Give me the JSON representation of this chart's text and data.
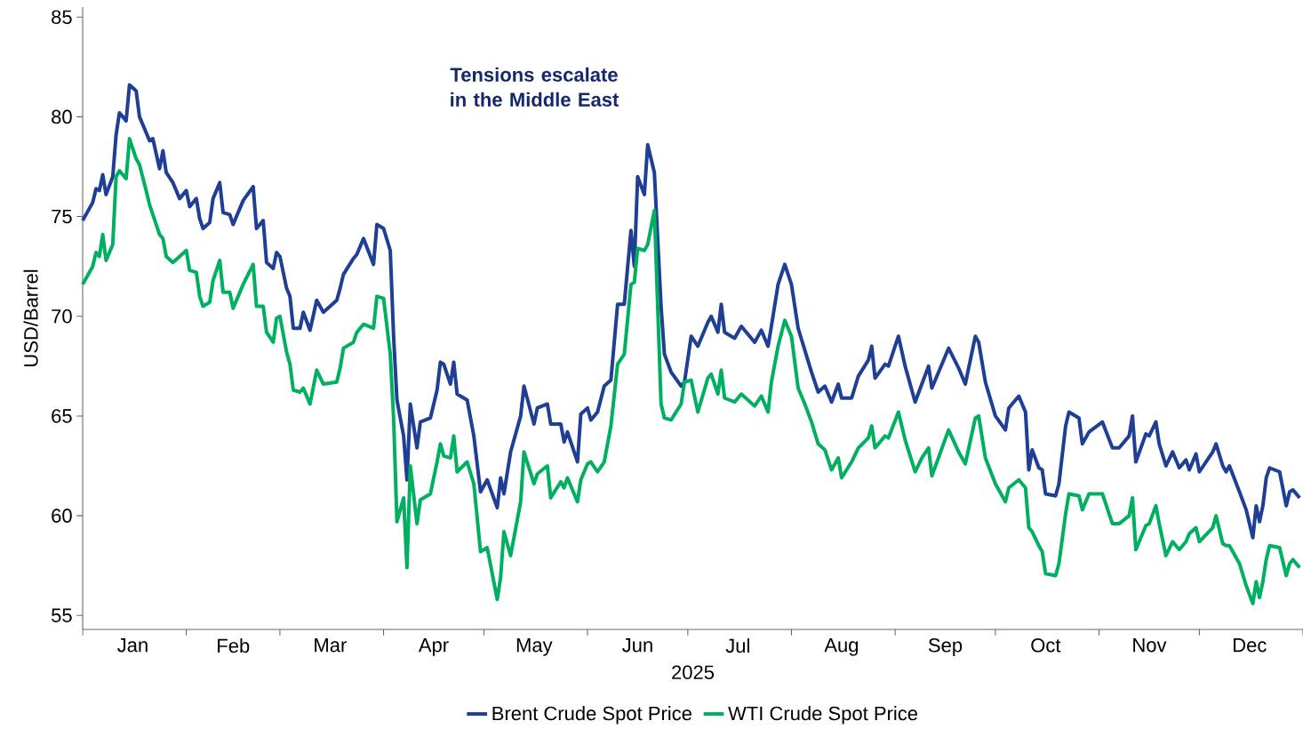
{
  "chart_data": {
    "type": "line",
    "xlabel": "2025",
    "ylabel": "USD/Barrel",
    "annotations": [
      "Tensions escalate in the Middle East"
    ],
    "x": [
      "2025-01-01",
      "2025-01-04",
      "2025-01-05",
      "2025-01-06",
      "2025-01-07",
      "2025-01-08",
      "2025-01-10",
      "2025-01-11",
      "2025-01-12",
      "2025-01-14",
      "2025-01-15",
      "2025-01-17",
      "2025-01-18",
      "2025-01-20",
      "2025-01-21",
      "2025-01-22",
      "2025-01-24",
      "2025-01-25",
      "2025-01-26",
      "2025-01-28",
      "2025-01-30",
      "2025-02-01",
      "2025-02-02",
      "2025-02-04",
      "2025-02-05",
      "2025-02-06",
      "2025-02-08",
      "2025-02-09",
      "2025-02-11",
      "2025-02-12",
      "2025-02-14",
      "2025-02-15",
      "2025-02-18",
      "2025-02-21",
      "2025-02-22",
      "2025-02-24",
      "2025-02-25",
      "2025-02-27",
      "2025-02-28",
      "2025-03-01",
      "2025-03-03",
      "2025-03-04",
      "2025-03-05",
      "2025-03-07",
      "2025-03-08",
      "2025-03-10",
      "2025-03-12",
      "2025-03-14",
      "2025-03-18",
      "2025-03-19",
      "2025-03-20",
      "2025-03-23",
      "2025-03-24",
      "2025-03-26",
      "2025-03-29",
      "2025-03-30",
      "2025-04-01",
      "2025-04-03",
      "2025-04-04",
      "2025-04-05",
      "2025-04-07",
      "2025-04-08",
      "2025-04-09",
      "2025-04-11",
      "2025-04-12",
      "2025-04-15",
      "2025-04-17",
      "2025-04-18",
      "2025-04-19",
      "2025-04-21",
      "2025-04-22",
      "2025-04-23",
      "2025-04-26",
      "2025-04-28",
      "2025-04-30",
      "2025-05-02",
      "2025-05-05",
      "2025-05-06",
      "2025-05-07",
      "2025-05-09",
      "2025-05-12",
      "2025-05-13",
      "2025-05-16",
      "2025-05-17",
      "2025-05-20",
      "2025-05-21",
      "2025-05-24",
      "2025-05-25",
      "2025-05-26",
      "2025-05-29",
      "2025-05-30",
      "2025-06-01",
      "2025-06-02",
      "2025-06-04",
      "2025-06-06",
      "2025-06-08",
      "2025-06-10",
      "2025-06-12",
      "2025-06-14",
      "2025-06-15",
      "2025-06-16",
      "2025-06-18",
      "2025-06-19",
      "2025-06-21",
      "2025-06-23",
      "2025-06-24",
      "2025-06-26",
      "2025-06-29",
      "2025-06-30",
      "2025-07-02",
      "2025-07-04",
      "2025-07-07",
      "2025-07-08",
      "2025-07-10",
      "2025-07-11",
      "2025-07-12",
      "2025-07-15",
      "2025-07-17",
      "2025-07-21",
      "2025-07-23",
      "2025-07-25",
      "2025-07-26",
      "2025-07-28",
      "2025-07-30",
      "2025-08-01",
      "2025-08-03",
      "2025-08-05",
      "2025-08-07",
      "2025-08-09",
      "2025-08-11",
      "2025-08-13",
      "2025-08-15",
      "2025-08-16",
      "2025-08-19",
      "2025-08-21",
      "2025-08-24",
      "2025-08-25",
      "2025-08-26",
      "2025-08-29",
      "2025-08-30",
      "2025-09-02",
      "2025-09-04",
      "2025-09-07",
      "2025-09-09",
      "2025-09-11",
      "2025-09-12",
      "2025-09-17",
      "2025-09-20",
      "2025-09-22",
      "2025-09-25",
      "2025-09-26",
      "2025-09-28",
      "2025-10-01",
      "2025-10-04",
      "2025-10-05",
      "2025-10-08",
      "2025-10-10",
      "2025-10-11",
      "2025-10-12",
      "2025-10-14",
      "2025-10-15",
      "2025-10-16",
      "2025-10-19",
      "2025-10-20",
      "2025-10-22",
      "2025-10-23",
      "2025-10-26",
      "2025-10-27",
      "2025-10-29",
      "2025-11-02",
      "2025-11-05",
      "2025-11-07",
      "2025-11-10",
      "2025-11-11",
      "2025-11-12",
      "2025-11-15",
      "2025-11-16",
      "2025-11-18",
      "2025-11-19",
      "2025-11-21",
      "2025-11-23",
      "2025-11-25",
      "2025-11-27",
      "2025-11-28",
      "2025-11-30",
      "2025-12-01",
      "2025-12-05",
      "2025-12-06",
      "2025-12-08",
      "2025-12-09",
      "2025-12-10",
      "2025-12-13",
      "2025-12-15",
      "2025-12-17",
      "2025-12-18",
      "2025-12-19",
      "2025-12-20",
      "2025-12-21",
      "2025-12-22",
      "2025-12-25",
      "2025-12-27",
      "2025-12-28",
      "2025-12-29",
      "2025-12-31"
    ],
    "series": [
      {
        "name": "Brent Crude Spot Price",
        "color": "#1f3f94",
        "values": [
          74.8,
          75.7,
          76.4,
          76.3,
          77.1,
          76.1,
          77.0,
          79.1,
          80.2,
          79.8,
          81.6,
          81.3,
          80.0,
          79.2,
          78.8,
          78.9,
          77.4,
          78.3,
          77.2,
          76.7,
          75.9,
          76.3,
          75.5,
          75.9,
          74.9,
          74.4,
          74.7,
          75.9,
          76.7,
          75.2,
          75.1,
          74.6,
          75.8,
          76.5,
          74.4,
          74.8,
          72.7,
          72.4,
          73.2,
          73.0,
          71.4,
          71.0,
          69.4,
          69.4,
          70.2,
          69.3,
          70.8,
          70.2,
          70.8,
          71.4,
          72.1,
          72.9,
          73.1,
          73.9,
          72.6,
          74.6,
          74.4,
          73.3,
          69.0,
          65.8,
          64.0,
          61.8,
          65.6,
          63.4,
          64.7,
          64.9,
          66.3,
          67.7,
          67.6,
          66.6,
          67.7,
          66.1,
          65.8,
          64.0,
          61.2,
          61.8,
          60.4,
          61.9,
          61.1,
          63.2,
          65.0,
          66.5,
          64.6,
          65.4,
          65.6,
          64.6,
          64.6,
          63.7,
          64.2,
          62.7,
          65.1,
          65.4,
          64.8,
          65.2,
          66.5,
          66.8,
          70.6,
          70.6,
          74.3,
          72.5,
          77.0,
          76.1,
          78.6,
          77.2,
          70.5,
          68.1,
          67.2,
          66.5,
          66.7,
          69.0,
          68.5,
          69.7,
          70.0,
          69.2,
          70.6,
          69.2,
          68.9,
          69.5,
          68.7,
          69.3,
          68.5,
          69.5,
          71.6,
          72.6,
          71.6,
          69.4,
          68.3,
          67.2,
          66.2,
          66.5,
          65.7,
          66.6,
          65.9,
          65.9,
          67.0,
          67.8,
          68.5,
          66.9,
          67.6,
          67.5,
          69.0,
          67.5,
          65.7,
          66.6,
          67.5,
          66.4,
          68.4,
          67.4,
          66.6,
          69.0,
          68.7,
          66.7,
          65.0,
          64.3,
          65.4,
          66.0,
          65.2,
          62.3,
          63.3,
          62.4,
          62.3,
          61.1,
          61.0,
          61.6,
          64.5,
          65.2,
          64.9,
          63.6,
          64.2,
          64.7,
          63.4,
          63.4,
          64.0,
          65.0,
          62.7,
          64.1,
          64.0,
          64.7,
          63.6,
          62.5,
          63.2,
          62.4,
          62.8,
          62.3,
          63.1,
          62.2,
          63.2,
          63.6,
          62.5,
          62.2,
          62.5,
          61.2,
          60.3,
          58.9,
          60.5,
          59.7,
          60.5,
          61.9,
          62.4,
          62.2,
          60.5,
          61.2,
          61.3,
          60.9
        ]
      },
      {
        "name": "WTI Crude Spot Price",
        "color": "#00b060",
        "values": [
          71.6,
          72.5,
          73.2,
          73.0,
          74.1,
          72.8,
          73.6,
          77.0,
          77.3,
          76.9,
          78.9,
          77.9,
          77.6,
          76.3,
          75.6,
          75.1,
          74.1,
          73.9,
          73.0,
          72.7,
          73.0,
          73.3,
          72.3,
          72.2,
          71.0,
          70.5,
          70.7,
          71.8,
          72.8,
          71.2,
          71.2,
          70.4,
          71.6,
          72.6,
          70.5,
          70.5,
          69.2,
          68.7,
          69.9,
          70.0,
          68.2,
          67.6,
          66.3,
          66.2,
          66.4,
          65.6,
          67.3,
          66.6,
          66.7,
          67.4,
          68.4,
          68.7,
          69.2,
          69.6,
          69.4,
          71.0,
          70.9,
          68.1,
          64.9,
          59.7,
          60.9,
          57.4,
          62.5,
          59.6,
          60.8,
          61.1,
          62.7,
          63.6,
          63.0,
          62.9,
          64.0,
          62.2,
          62.7,
          61.6,
          58.2,
          58.4,
          55.8,
          56.9,
          59.2,
          58.0,
          60.7,
          63.2,
          61.6,
          62.1,
          62.5,
          60.9,
          61.7,
          61.4,
          61.9,
          60.7,
          61.8,
          62.6,
          62.7,
          62.2,
          62.7,
          64.5,
          67.6,
          68.1,
          71.6,
          71.7,
          73.4,
          73.3,
          73.6,
          75.3,
          65.6,
          64.9,
          64.8,
          65.6,
          66.7,
          66.8,
          65.2,
          66.9,
          67.1,
          66.1,
          67.3,
          65.9,
          65.7,
          66.1,
          65.5,
          66.0,
          65.2,
          66.7,
          68.5,
          69.8,
          69.0,
          66.4,
          65.6,
          64.7,
          63.6,
          63.3,
          62.3,
          62.9,
          61.9,
          62.7,
          63.4,
          63.9,
          64.5,
          63.4,
          64.0,
          63.9,
          65.2,
          63.8,
          62.2,
          62.9,
          63.4,
          62.0,
          64.3,
          63.2,
          62.6,
          64.9,
          65.0,
          62.9,
          61.6,
          60.7,
          61.4,
          61.8,
          61.4,
          59.4,
          59.2,
          58.5,
          58.2,
          57.1,
          57.0,
          57.6,
          60.1,
          61.1,
          61.0,
          60.3,
          61.1,
          61.1,
          59.6,
          59.6,
          60.0,
          60.9,
          58.3,
          59.5,
          59.6,
          60.5,
          59.6,
          58.0,
          58.7,
          58.3,
          58.7,
          59.1,
          59.4,
          58.7,
          59.4,
          60.0,
          58.6,
          58.5,
          58.5,
          57.6,
          56.5,
          55.6,
          56.7,
          55.9,
          56.7,
          57.8,
          58.5,
          58.4,
          57.0,
          57.6,
          57.8,
          57.4
        ]
      }
    ],
    "xlim": [
      "2025-01-01",
      "2026-01-01"
    ],
    "xticks": [
      {
        "value": "2025-01-01",
        "label": null
      },
      {
        "value": "2025-02-01",
        "label": null
      },
      {
        "value": "2025-03-01",
        "label": null
      },
      {
        "value": "2025-04-01",
        "label": null
      },
      {
        "value": "2025-05-01",
        "label": null
      },
      {
        "value": "2025-06-01",
        "label": null
      },
      {
        "value": "2025-07-01",
        "label": null
      },
      {
        "value": "2025-08-01",
        "label": null
      },
      {
        "value": "2025-09-01",
        "label": null
      },
      {
        "value": "2025-10-01",
        "label": null
      },
      {
        "value": "2025-11-01",
        "label": null
      },
      {
        "value": "2025-12-01",
        "label": null
      },
      {
        "value": "2026-01-01",
        "label": null
      },
      {
        "value": "2025-01-16",
        "label": "Jan"
      },
      {
        "value": "2025-02-15",
        "label": "Feb"
      },
      {
        "value": "2025-03-16",
        "label": "Mar"
      },
      {
        "value": "2025-04-16",
        "label": "Apr"
      },
      {
        "value": "2025-05-16",
        "label": "May"
      },
      {
        "value": "2025-06-16",
        "label": "Jun"
      },
      {
        "value": "2025-07-16",
        "label": "Jul"
      },
      {
        "value": "2025-08-16",
        "label": "Aug"
      },
      {
        "value": "2025-09-16",
        "label": "Sep"
      },
      {
        "value": "2025-10-16",
        "label": "Oct"
      },
      {
        "value": "2025-11-16",
        "label": "Nov"
      },
      {
        "value": "2025-12-16",
        "label": "Dec"
      }
    ],
    "ylim": [
      54.3,
      85.5
    ],
    "yticks": [
      55,
      60,
      65,
      70,
      75,
      80,
      85
    ],
    "legend": "bottom",
    "marker": "none",
    "line_style": "solid",
    "grid": false
  }
}
